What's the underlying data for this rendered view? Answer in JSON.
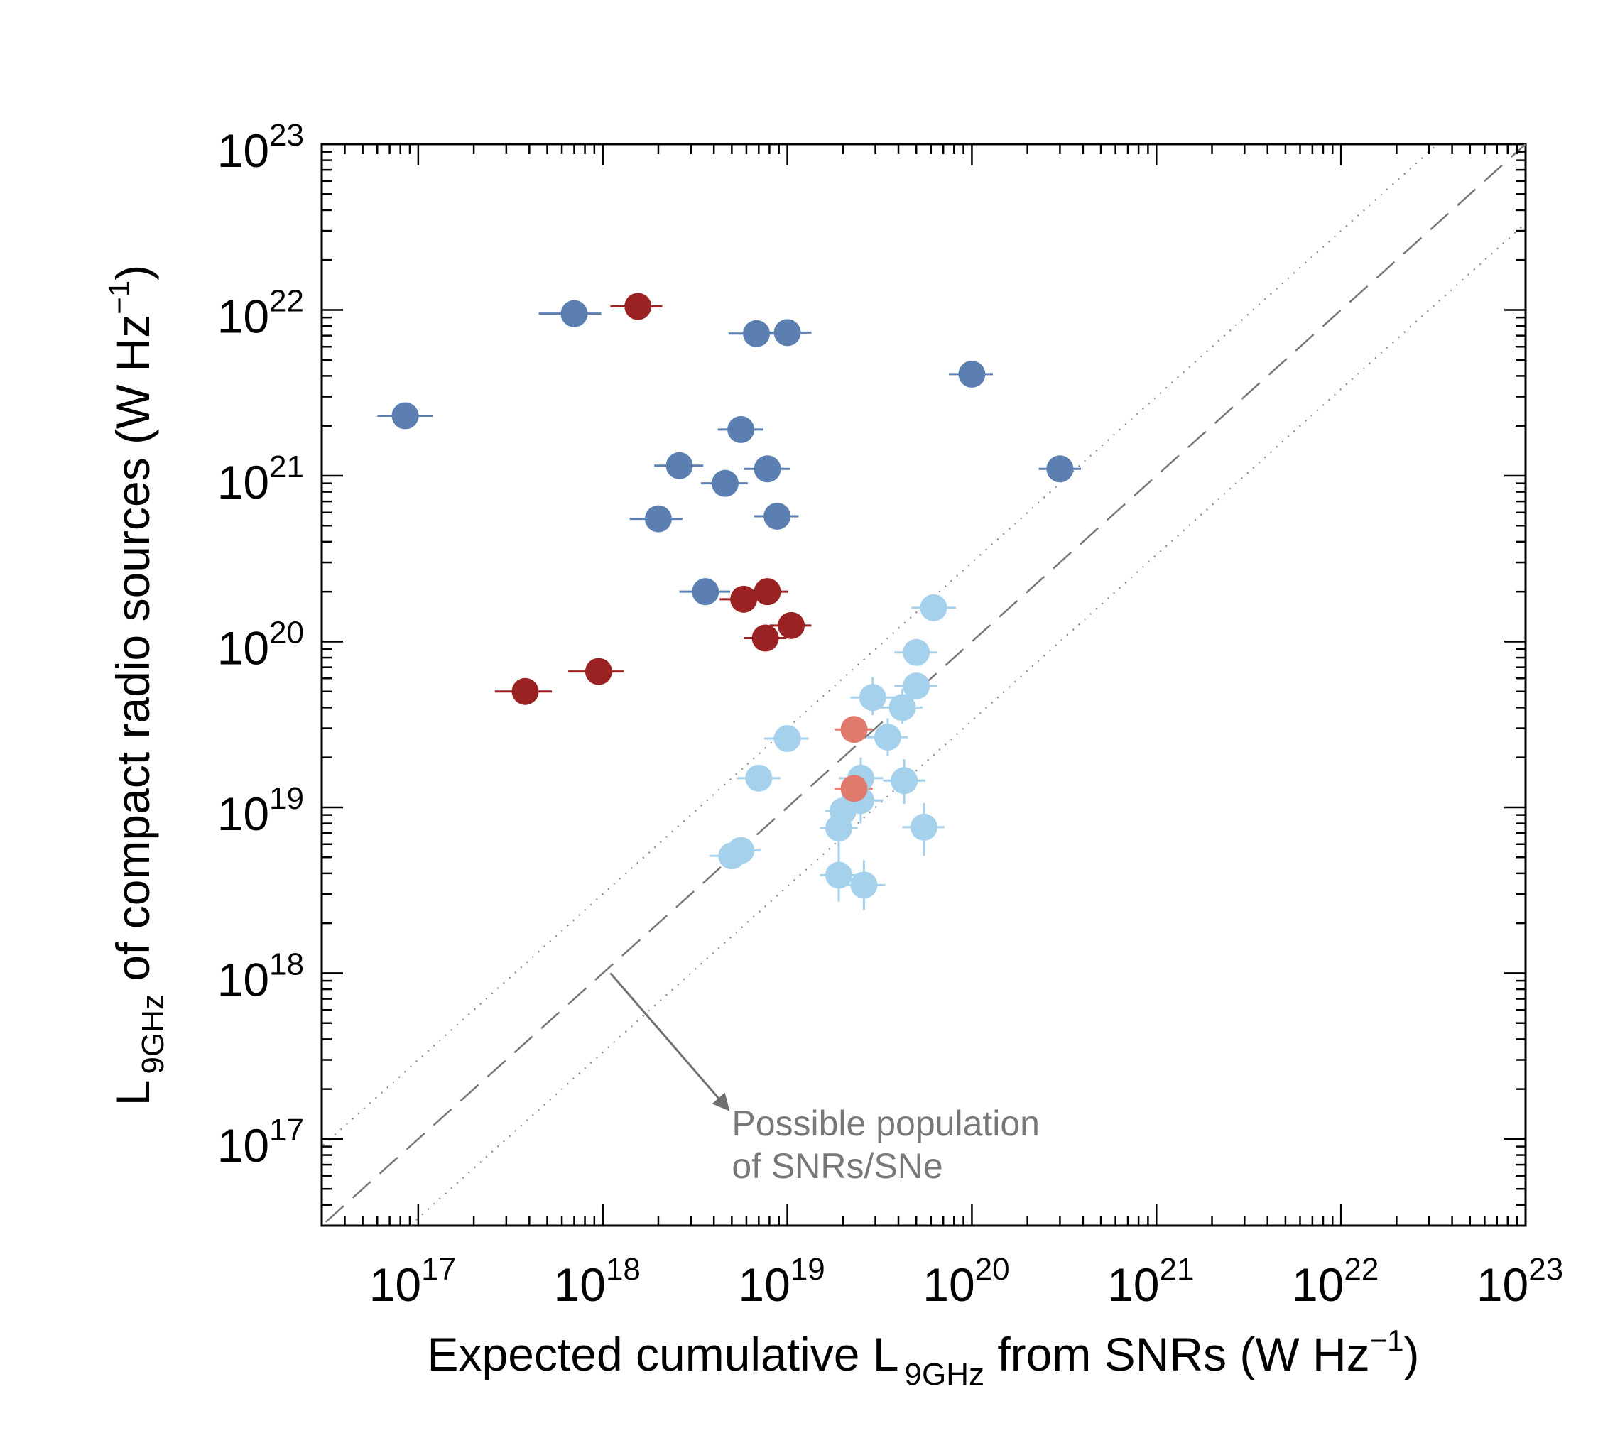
{
  "chart_data": {
    "type": "scatter",
    "xscale": "log",
    "yscale": "log",
    "xlabel": {
      "prefix": "Expected cumulative L",
      "subscript": "9GHz",
      "suffix": " from SNRs (W Hz",
      "superscript": "−1",
      "close": ")"
    },
    "ylabel": {
      "prefix": "L",
      "subscript": "9GHz",
      "suffix": " of compact radio sources (W Hz",
      "superscript": "−1",
      "close": ")"
    },
    "xlim": [
      3e+16,
      1e+23
    ],
    "ylim": [
      3e+16,
      1e+23
    ],
    "x_tick_labels": [
      {
        "base": "10",
        "exp": "17",
        "value": 1e+17
      },
      {
        "base": "10",
        "exp": "18",
        "value": 1e+18
      },
      {
        "base": "10",
        "exp": "19",
        "value": 1e+19
      },
      {
        "base": "10",
        "exp": "20",
        "value": 1e+20
      },
      {
        "base": "10",
        "exp": "21",
        "value": 1e+21
      },
      {
        "base": "10",
        "exp": "22",
        "value": 1e+22
      },
      {
        "base": "10",
        "exp": "23",
        "value": 1e+23
      }
    ],
    "y_tick_labels": [
      {
        "base": "10",
        "exp": "17",
        "value": 1e+17
      },
      {
        "base": "10",
        "exp": "18",
        "value": 1e+18
      },
      {
        "base": "10",
        "exp": "19",
        "value": 1e+19
      },
      {
        "base": "10",
        "exp": "20",
        "value": 1e+20
      },
      {
        "base": "10",
        "exp": "21",
        "value": 1e+21
      },
      {
        "base": "10",
        "exp": "22",
        "value": 1e+22
      },
      {
        "base": "10",
        "exp": "23",
        "value": 1e+23
      }
    ],
    "reference_lines": [
      {
        "name": "one-to-one",
        "style": "dashed",
        "factor": 1,
        "color": "#777777"
      },
      {
        "name": "upper-bound",
        "style": "dotted",
        "factor": 3,
        "color": "#888888"
      },
      {
        "name": "lower-bound",
        "style": "dotted",
        "factor": 0.3333,
        "color": "#888888"
      }
    ],
    "annotation": {
      "lines": [
        "Possible population",
        "of SNRs/SNe"
      ],
      "arrow_from": [
        1.1e+18,
        1e+18
      ],
      "arrow_to": [
        4.8e+18,
        1.5e+17
      ],
      "text_anchor": [
        5e+18,
        1.05e+17
      ],
      "color": "#777777"
    },
    "series": [
      {
        "name": "dark-blue",
        "color": "#5b7fb1",
        "points": [
          {
            "x": 8.5e+16,
            "y": 2.3e+21,
            "xerr": [
              2.5e+16,
              3.5e+16
            ]
          },
          {
            "x": 7e+17,
            "y": 9.5e+21,
            "xerr": [
              2.5e+17,
              2.8e+17
            ]
          },
          {
            "x": 6.8e+18,
            "y": 7.2e+21,
            "xerr": [
              2e+18,
              3e+18
            ]
          },
          {
            "x": 1e+19,
            "y": 7.3e+21,
            "xerr": [
              3e+18,
              3.5e+18
            ]
          },
          {
            "x": 5.6e+18,
            "y": 1.9e+21,
            "xerr": [
              1.4e+18,
              1.8e+18
            ]
          },
          {
            "x": 2.6e+18,
            "y": 1.15e+21,
            "xerr": [
              7e+17,
              9e+17
            ]
          },
          {
            "x": 4.6e+18,
            "y": 9e+20,
            "xerr": [
              1.2e+18,
              1.5e+18
            ]
          },
          {
            "x": 7.8e+18,
            "y": 1.1e+21,
            "xerr": [
              2e+18,
              2.5e+18
            ]
          },
          {
            "x": 2e+18,
            "y": 5.5e+20,
            "xerr": [
              6e+17,
              7e+17
            ]
          },
          {
            "x": 8.8e+18,
            "y": 5.7e+20,
            "xerr": [
              2.2e+18,
              2.7e+18
            ]
          },
          {
            "x": 3.6e+18,
            "y": 2e+20,
            "xerr": [
              1e+18,
              1.3e+18
            ]
          },
          {
            "x": 1e+20,
            "y": 4.1e+21,
            "xerr": [
              2.5e+19,
              3e+19
            ]
          },
          {
            "x": 3e+20,
            "y": 1.1e+21,
            "xerr": [
              7e+19,
              9e+19
            ]
          }
        ]
      },
      {
        "name": "dark-red",
        "color": "#9b2222",
        "points": [
          {
            "x": 1.55e+18,
            "y": 1.05e+22,
            "xerr": [
              4.5e+17,
              5.5e+17
            ]
          },
          {
            "x": 5.8e+18,
            "y": 1.8e+20,
            "xerr": [
              1.5e+18,
              2e+18
            ]
          },
          {
            "x": 7.8e+18,
            "y": 2e+20,
            "xerr": [
              1.8e+18,
              2.3e+18
            ]
          },
          {
            "x": 7.6e+18,
            "y": 1.05e+20,
            "xerr": [
              1.8e+18,
              2.3e+18
            ]
          },
          {
            "x": 1.05e+19,
            "y": 1.25e+20,
            "xerr": [
              2.5e+18,
              3e+18
            ]
          },
          {
            "x": 9.5e+17,
            "y": 6.6e+19,
            "xerr": [
              3e+17,
              3.5e+17
            ]
          },
          {
            "x": 3.8e+17,
            "y": 5e+19,
            "xerr": [
              1.2e+17,
              1.5e+17
            ]
          }
        ]
      },
      {
        "name": "light-blue",
        "color": "#a6d1ec",
        "points": [
          {
            "x": 6.2e+19,
            "y": 1.6e+20,
            "xerr": [
              1.5e+19,
              2e+19
            ]
          },
          {
            "x": 5e+19,
            "y": 8.6e+19,
            "xerr": [
              1.2e+19,
              1.5e+19
            ]
          },
          {
            "x": 5e+19,
            "y": 5.4e+19,
            "xerr": [
              1.2e+19,
              1.5e+19
            ]
          },
          {
            "x": 2.9e+19,
            "y": 4.6e+19,
            "xerr": [
              7e+18,
              9e+18
            ],
            "yerr": [
              1e+19,
              1.5e+19
            ]
          },
          {
            "x": 4.2e+19,
            "y": 4e+19,
            "xerr": [
              1e+19,
              1.2e+19
            ],
            "yerr": [
              8e+18,
              1.2e+19
            ]
          },
          {
            "x": 3.5e+19,
            "y": 2.65e+19,
            "xerr": [
              8e+18,
              1e+19
            ],
            "yerr": [
              6e+18,
              8e+18
            ]
          },
          {
            "x": 1e+19,
            "y": 2.6e+19,
            "xerr": [
              2.5e+18,
              3e+18
            ]
          },
          {
            "x": 7e+18,
            "y": 1.5e+19,
            "xerr": [
              1.7e+18,
              2.2e+18
            ]
          },
          {
            "x": 2.5e+19,
            "y": 1.5e+19,
            "xerr": [
              6e+18,
              8e+18
            ],
            "yerr": [
              4e+18,
              5e+18
            ]
          },
          {
            "x": 4.3e+19,
            "y": 1.45e+19,
            "xerr": [
              1e+19,
              1.3e+19
            ],
            "yerr": [
              4e+18,
              5e+18
            ]
          },
          {
            "x": 2.5e+19,
            "y": 1.1e+19,
            "xerr": [
              6e+18,
              8e+18
            ],
            "yerr": [
              3e+18,
              4e+18
            ]
          },
          {
            "x": 2e+19,
            "y": 9.5e+18,
            "xerr": [
              4e+18,
              5e+18
            ],
            "yerr": [
              2.5e+18,
              3e+18
            ]
          },
          {
            "x": 1.9e+19,
            "y": 7.5e+18,
            "xerr": [
              4e+18,
              5e+18
            ],
            "yerr": [
              2e+18,
              2.5e+18
            ]
          },
          {
            "x": 5.5e+19,
            "y": 7.6e+18,
            "xerr": [
              1.3e+19,
              1.6e+19
            ],
            "yerr": [
              2.5e+18,
              3e+18
            ]
          },
          {
            "x": 5.6e+18,
            "y": 5.5e+18,
            "xerr": [
              1.3e+18,
              1.6e+18
            ]
          },
          {
            "x": 5e+18,
            "y": 5.1e+18,
            "xerr": [
              1.2e+18,
              1.5e+18
            ]
          },
          {
            "x": 1.9e+19,
            "y": 3.9e+18,
            "xerr": [
              4e+18,
              5e+18
            ],
            "yerr": [
              1.2e+18,
              1.6e+18
            ]
          },
          {
            "x": 2.6e+19,
            "y": 3.4e+18,
            "xerr": [
              6e+18,
              8e+18
            ],
            "yerr": [
              1e+18,
              1.4e+18
            ]
          }
        ]
      },
      {
        "name": "light-red",
        "color": "#e07a6c",
        "points": [
          {
            "x": 2.3e+19,
            "y": 2.95e+19,
            "xerr": [
              5e+18,
              6e+18
            ]
          },
          {
            "x": 2.3e+19,
            "y": 1.3e+19,
            "xerr": [
              5e+18,
              6e+18
            ]
          }
        ]
      }
    ]
  }
}
